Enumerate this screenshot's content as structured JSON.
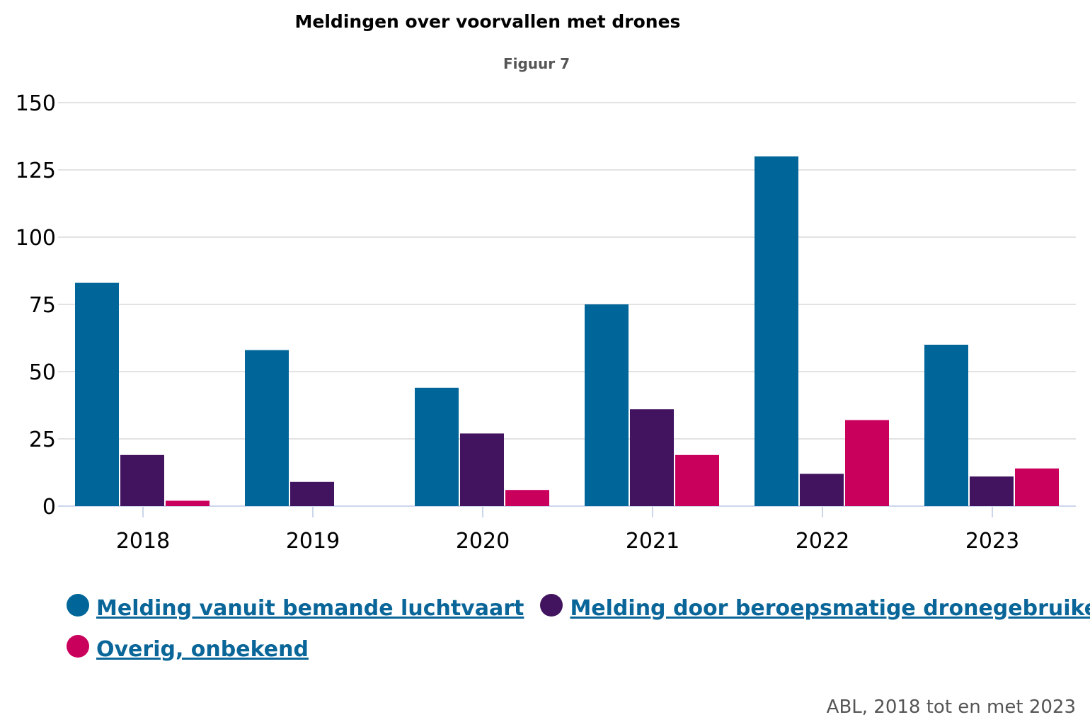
{
  "title": "Meldingen over voorvallen met drones",
  "subtitle": "Figuur 7",
  "source": "ABL, 2018 tot en met 2023",
  "chart_data": {
    "type": "bar",
    "title": "Meldingen over voorvallen met drones",
    "subtitle": "Figuur 7",
    "categories": [
      "2018",
      "2019",
      "2020",
      "2021",
      "2022",
      "2023"
    ],
    "ylim": [
      0,
      150
    ],
    "yticks": [
      0,
      25,
      50,
      75,
      100,
      125,
      150
    ],
    "grid": true,
    "legend_position": "bottom-left",
    "series": [
      {
        "name": "Melding vanuit bemande luchtvaart",
        "color": "#006699",
        "values": [
          83,
          58,
          44,
          75,
          130,
          60
        ]
      },
      {
        "name": "Melding door beroepsmatige dronegebruikers",
        "color": "#42145f",
        "values": [
          19,
          9,
          27,
          36,
          12,
          11
        ]
      },
      {
        "name": "Overig, onbekend",
        "color": "#ca005d",
        "values": [
          2,
          0,
          6,
          19,
          32,
          14
        ]
      }
    ]
  }
}
